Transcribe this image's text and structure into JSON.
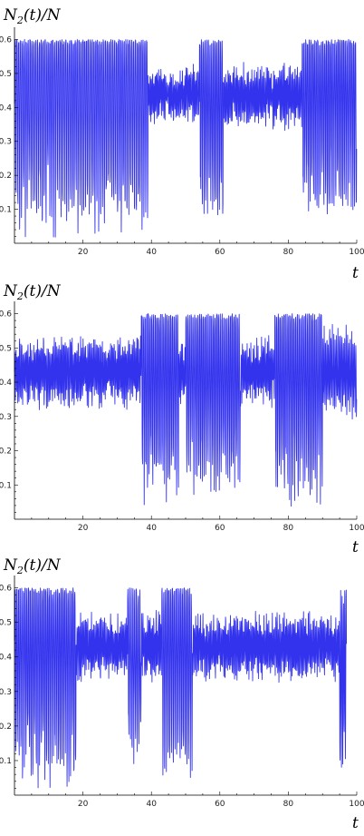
{
  "series_color": "#3333ee",
  "chart_data": [
    {
      "type": "line",
      "ylabel": {
        "main": "N",
        "sub": "2",
        "rest": "(t)/N"
      },
      "xlabel": "t",
      "xlim": [
        0,
        100
      ],
      "ylim": [
        0,
        0.62
      ],
      "xticks": [
        20,
        40,
        60,
        80,
        100
      ],
      "yticks": [
        0.1,
        0.2,
        0.3,
        0.4,
        0.5,
        0.6
      ],
      "ytick_labels": [
        "0.1",
        "0.2",
        "0.3",
        "0.4",
        "0.5",
        "0.6"
      ],
      "xtick_labels": [
        "20",
        "40",
        "60",
        "80",
        "100"
      ],
      "segments": [
        {
          "x0": 0,
          "x1": 39,
          "mean": 0.44,
          "amp": 0.42,
          "period": 0.55
        },
        {
          "x0": 39,
          "x1": 54,
          "mean": 0.44,
          "amp": 0.07,
          "period": 0.35
        },
        {
          "x0": 54,
          "x1": 61,
          "mean": 0.42,
          "amp": 0.36,
          "period": 0.5
        },
        {
          "x0": 61,
          "x1": 84,
          "mean": 0.435,
          "amp": 0.08,
          "period": 0.35
        },
        {
          "x0": 84,
          "x1": 100,
          "mean": 0.44,
          "amp": 0.38,
          "period": 0.5
        }
      ]
    },
    {
      "type": "line",
      "ylabel": {
        "main": "N",
        "sub": "2",
        "rest": "(t)/N"
      },
      "xlabel": "t",
      "xlim": [
        0,
        100
      ],
      "ylim": [
        0,
        0.62
      ],
      "xticks": [
        20,
        40,
        60,
        80,
        100
      ],
      "yticks": [
        0.1,
        0.2,
        0.3,
        0.4,
        0.5,
        0.6
      ],
      "ytick_labels": [
        "0.1",
        "0.2",
        "0.3",
        "0.4",
        "0.5",
        "0.6"
      ],
      "xtick_labels": [
        "20",
        "40",
        "60",
        "80",
        "100"
      ],
      "segments": [
        {
          "x0": 0,
          "x1": 37,
          "mean": 0.43,
          "amp": 0.09,
          "period": 0.35
        },
        {
          "x0": 37,
          "x1": 48,
          "mean": 0.42,
          "amp": 0.38,
          "period": 0.5
        },
        {
          "x0": 48,
          "x1": 50,
          "mean": 0.43,
          "amp": 0.08,
          "period": 0.35
        },
        {
          "x0": 50,
          "x1": 66,
          "mean": 0.42,
          "amp": 0.36,
          "period": 0.5
        },
        {
          "x0": 66,
          "x1": 76,
          "mean": 0.43,
          "amp": 0.08,
          "period": 0.35
        },
        {
          "x0": 76,
          "x1": 90,
          "mean": 0.42,
          "amp": 0.38,
          "period": 0.5
        },
        {
          "x0": 90,
          "x1": 100,
          "mean": 0.43,
          "amp": 0.12,
          "period": 0.4
        }
      ]
    },
    {
      "type": "line",
      "ylabel": {
        "main": "N",
        "sub": "2",
        "rest": "(t)/N"
      },
      "xlabel": "t",
      "xlim": [
        0,
        100
      ],
      "ylim": [
        0,
        0.62
      ],
      "xticks": [
        20,
        40,
        60,
        80,
        100
      ],
      "yticks": [
        0.1,
        0.2,
        0.3,
        0.4,
        0.5,
        0.6
      ],
      "ytick_labels": [
        "0.1",
        "0.2",
        "0.3",
        "0.4",
        "0.5",
        "0.6"
      ],
      "xtick_labels": [
        "20",
        "40",
        "60",
        "80",
        "100"
      ],
      "segments": [
        {
          "x0": 0,
          "x1": 18,
          "mean": 0.42,
          "amp": 0.4,
          "period": 0.5
        },
        {
          "x0": 18,
          "x1": 33,
          "mean": 0.43,
          "amp": 0.08,
          "period": 0.35
        },
        {
          "x0": 33,
          "x1": 37,
          "mean": 0.4,
          "amp": 0.3,
          "period": 0.5
        },
        {
          "x0": 37,
          "x1": 43,
          "mean": 0.43,
          "amp": 0.08,
          "period": 0.35
        },
        {
          "x0": 43,
          "x1": 52,
          "mean": 0.42,
          "amp": 0.38,
          "period": 0.5
        },
        {
          "x0": 52,
          "x1": 95,
          "mean": 0.43,
          "amp": 0.08,
          "period": 0.35
        },
        {
          "x0": 95,
          "x1": 97,
          "mean": 0.35,
          "amp": 0.3,
          "period": 0.4
        }
      ]
    }
  ]
}
